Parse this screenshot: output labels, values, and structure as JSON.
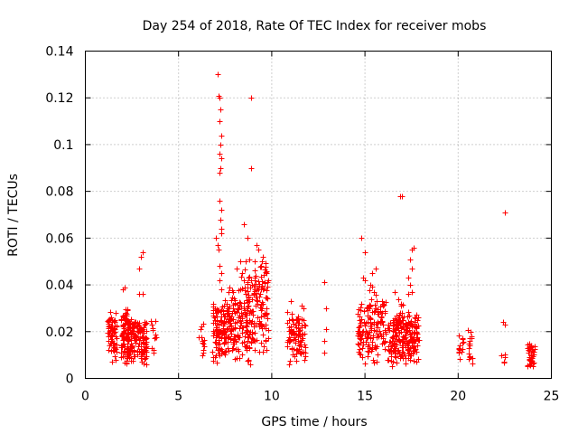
{
  "chart_data": {
    "type": "scatter",
    "title": "Day 254 of 2018, Rate Of TEC Index for receiver mobs",
    "xlabel": "GPS time / hours",
    "ylabel": "ROTI / TECUs",
    "xlim": [
      0,
      25
    ],
    "ylim": [
      0,
      0.14
    ],
    "xticks": [
      0,
      5,
      10,
      15,
      20,
      25
    ],
    "xtick_labels": [
      "0",
      "5",
      "10",
      "15",
      "20",
      "25"
    ],
    "yticks": [
      0,
      0.02,
      0.04,
      0.06,
      0.08,
      0.1,
      0.12,
      0.14
    ],
    "ytick_labels": [
      "0",
      "0.02",
      "0.04",
      "0.06",
      "0.08",
      "0.1",
      "0.12",
      "0.14"
    ],
    "grid": true,
    "marker": "plus",
    "color": "#ff0000",
    "clusters": [
      {
        "x_range": [
          1.2,
          1.7
        ],
        "y_range": [
          0.006,
          0.03
        ],
        "count": 70
      },
      {
        "x_range": [
          1.9,
          2.3
        ],
        "y_range": [
          0.005,
          0.032
        ],
        "count": 80
      },
      {
        "x_range": [
          2.2,
          2.6
        ],
        "y_range": [
          0.005,
          0.028
        ],
        "count": 70
      },
      {
        "x_range": [
          2.6,
          3.3
        ],
        "y_range": [
          0.005,
          0.027
        ],
        "count": 90
      },
      {
        "x_range": [
          3.5,
          3.9
        ],
        "y_range": [
          0.007,
          0.027
        ],
        "count": 12
      },
      {
        "x_range": [
          6.1,
          6.4
        ],
        "y_range": [
          0.006,
          0.026
        ],
        "count": 14
      },
      {
        "x_range": [
          6.8,
          7.6
        ],
        "y_range": [
          0.005,
          0.035
        ],
        "count": 110
      },
      {
        "x_range": [
          7.6,
          8.3
        ],
        "y_range": [
          0.005,
          0.04
        ],
        "count": 90
      },
      {
        "x_range": [
          8.3,
          9.0
        ],
        "y_range": [
          0.005,
          0.05
        ],
        "count": 100
      },
      {
        "x_range": [
          9.0,
          9.8
        ],
        "y_range": [
          0.008,
          0.056
        ],
        "count": 100
      },
      {
        "x_range": [
          10.8,
          11.3
        ],
        "y_range": [
          0.006,
          0.03
        ],
        "count": 40
      },
      {
        "x_range": [
          11.3,
          11.8
        ],
        "y_range": [
          0.006,
          0.03
        ],
        "count": 50
      },
      {
        "x_range": [
          14.6,
          15.1
        ],
        "y_range": [
          0.006,
          0.032
        ],
        "count": 55
      },
      {
        "x_range": [
          15.1,
          15.6
        ],
        "y_range": [
          0.006,
          0.04
        ],
        "count": 60
      },
      {
        "x_range": [
          15.6,
          16.1
        ],
        "y_range": [
          0.006,
          0.035
        ],
        "count": 50
      },
      {
        "x_range": [
          16.2,
          16.8
        ],
        "y_range": [
          0.005,
          0.03
        ],
        "count": 80
      },
      {
        "x_range": [
          16.8,
          17.4
        ],
        "y_range": [
          0.005,
          0.032
        ],
        "count": 90
      },
      {
        "x_range": [
          17.4,
          17.9
        ],
        "y_range": [
          0.005,
          0.03
        ],
        "count": 70
      },
      {
        "x_range": [
          20.0,
          20.3
        ],
        "y_range": [
          0.005,
          0.02
        ],
        "count": 14
      },
      {
        "x_range": [
          20.5,
          20.8
        ],
        "y_range": [
          0.004,
          0.022
        ],
        "count": 16
      },
      {
        "x_range": [
          22.3,
          22.5
        ],
        "y_range": [
          0.004,
          0.013
        ],
        "count": 5
      },
      {
        "x_range": [
          23.7,
          24.1
        ],
        "y_range": [
          0.004,
          0.017
        ],
        "count": 40
      }
    ],
    "points": [
      [
        1.4,
        0.017
      ],
      [
        1.6,
        0.028
      ],
      [
        2.0,
        0.038
      ],
      [
        2.1,
        0.039
      ],
      [
        2.9,
        0.047
      ],
      [
        3.0,
        0.052
      ],
      [
        3.1,
        0.054
      ],
      [
        2.9,
        0.036
      ],
      [
        3.1,
        0.036
      ],
      [
        7.0,
        0.06
      ],
      [
        7.1,
        0.057
      ],
      [
        7.15,
        0.055
      ],
      [
        7.2,
        0.088
      ],
      [
        7.25,
        0.09
      ],
      [
        7.2,
        0.096
      ],
      [
        7.25,
        0.1
      ],
      [
        7.3,
        0.094
      ],
      [
        7.1,
        0.13
      ],
      [
        7.15,
        0.121
      ],
      [
        7.2,
        0.12
      ],
      [
        7.25,
        0.115
      ],
      [
        7.2,
        0.11
      ],
      [
        7.3,
        0.104
      ],
      [
        7.2,
        0.076
      ],
      [
        7.3,
        0.072
      ],
      [
        7.25,
        0.068
      ],
      [
        7.3,
        0.064
      ],
      [
        7.3,
        0.062
      ],
      [
        7.2,
        0.048
      ],
      [
        7.3,
        0.045
      ],
      [
        7.2,
        0.042
      ],
      [
        7.3,
        0.038
      ],
      [
        8.1,
        0.047
      ],
      [
        8.3,
        0.05
      ],
      [
        8.5,
        0.066
      ],
      [
        8.6,
        0.05
      ],
      [
        8.7,
        0.06
      ],
      [
        8.8,
        0.051
      ],
      [
        8.9,
        0.09
      ],
      [
        8.9,
        0.12
      ],
      [
        9.2,
        0.057
      ],
      [
        9.3,
        0.055
      ],
      [
        9.5,
        0.052
      ],
      [
        9.6,
        0.041
      ],
      [
        9.7,
        0.046
      ],
      [
        8.4,
        0.045
      ],
      [
        9.1,
        0.043
      ],
      [
        9.7,
        0.03
      ],
      [
        9.4,
        0.038
      ],
      [
        11.0,
        0.033
      ],
      [
        11.1,
        0.025
      ],
      [
        11.6,
        0.031
      ],
      [
        11.7,
        0.03
      ],
      [
        12.8,
        0.041
      ],
      [
        12.9,
        0.03
      ],
      [
        12.9,
        0.021
      ],
      [
        12.8,
        0.016
      ],
      [
        12.8,
        0.011
      ],
      [
        14.8,
        0.06
      ],
      [
        15.0,
        0.054
      ],
      [
        15.0,
        0.042
      ],
      [
        14.9,
        0.043
      ],
      [
        15.4,
        0.045
      ],
      [
        15.6,
        0.047
      ],
      [
        15.3,
        0.04
      ],
      [
        15.5,
        0.037
      ],
      [
        16.6,
        0.037
      ],
      [
        16.8,
        0.034
      ],
      [
        16.9,
        0.078
      ],
      [
        17.0,
        0.078
      ],
      [
        17.5,
        0.055
      ],
      [
        17.6,
        0.056
      ],
      [
        17.4,
        0.051
      ],
      [
        17.5,
        0.047
      ],
      [
        17.3,
        0.043
      ],
      [
        17.4,
        0.04
      ],
      [
        17.5,
        0.037
      ],
      [
        17.3,
        0.036
      ],
      [
        22.5,
        0.071
      ],
      [
        22.4,
        0.024
      ],
      [
        22.5,
        0.023
      ]
    ]
  }
}
